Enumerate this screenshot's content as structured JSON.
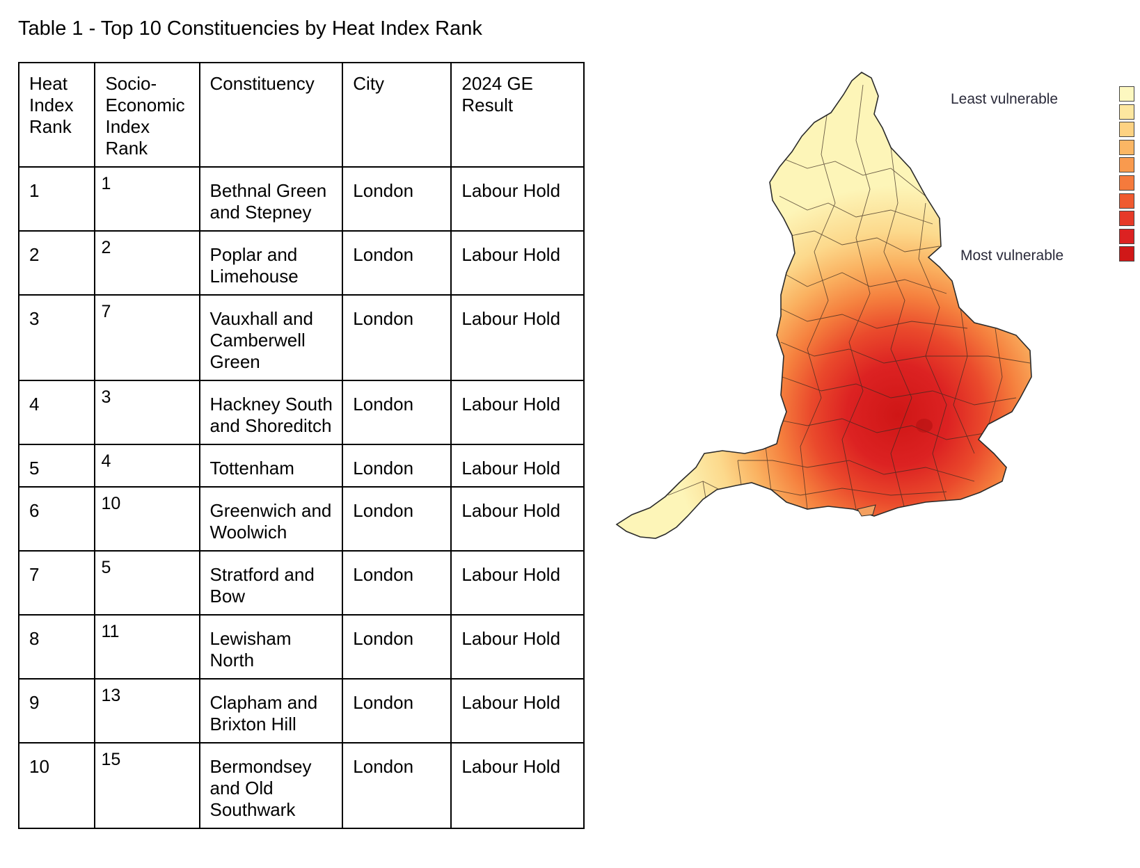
{
  "title": "Table 1 - Top 10 Constituencies by Heat Index Rank",
  "table": {
    "headers": [
      "Heat Index Rank",
      "Socio-Economic Index Rank",
      "Constituency",
      "City",
      "2024 GE Result"
    ],
    "rows": [
      {
        "heat": "1",
        "se": "1",
        "constituency": "Bethnal Green and Stepney",
        "city": "London",
        "result": "Labour Hold"
      },
      {
        "heat": "2",
        "se": "2",
        "constituency": "Poplar and Limehouse",
        "city": "London",
        "result": "Labour Hold"
      },
      {
        "heat": "3",
        "se": "7",
        "constituency": "Vauxhall and Camberwell Green",
        "city": "London",
        "result": "Labour Hold"
      },
      {
        "heat": "4",
        "se": "3",
        "constituency": "Hackney South and Shoreditch",
        "city": "London",
        "result": "Labour Hold"
      },
      {
        "heat": "5",
        "se": "4",
        "constituency": "Tottenham",
        "city": "London",
        "result": "Labour Hold"
      },
      {
        "heat": "6",
        "se": "10",
        "constituency": "Greenwich and Woolwich",
        "city": "London",
        "result": "Labour Hold"
      },
      {
        "heat": "7",
        "se": "5",
        "constituency": "Stratford and Bow",
        "city": "London",
        "result": "Labour Hold"
      },
      {
        "heat": "8",
        "se": "11",
        "constituency": "Lewisham North",
        "city": "London",
        "result": "Labour Hold"
      },
      {
        "heat": "9",
        "se": "13",
        "constituency": "Clapham and Brixton Hill",
        "city": "London",
        "result": "Labour Hold"
      },
      {
        "heat": "10",
        "se": "15",
        "constituency": "Bermondsey and Old Southwark",
        "city": "London",
        "result": "Labour Hold"
      }
    ]
  },
  "map": {
    "legend_top_label": "Least vulnerable",
    "legend_bottom_label": "Most vulnerable",
    "scale_colors": [
      "#fdf8c0",
      "#fde7a0",
      "#fdd282",
      "#fbb664",
      "#f99a4e",
      "#f57a3c",
      "#ef5a30",
      "#e63a28",
      "#dc2222",
      "#d01818"
    ]
  }
}
